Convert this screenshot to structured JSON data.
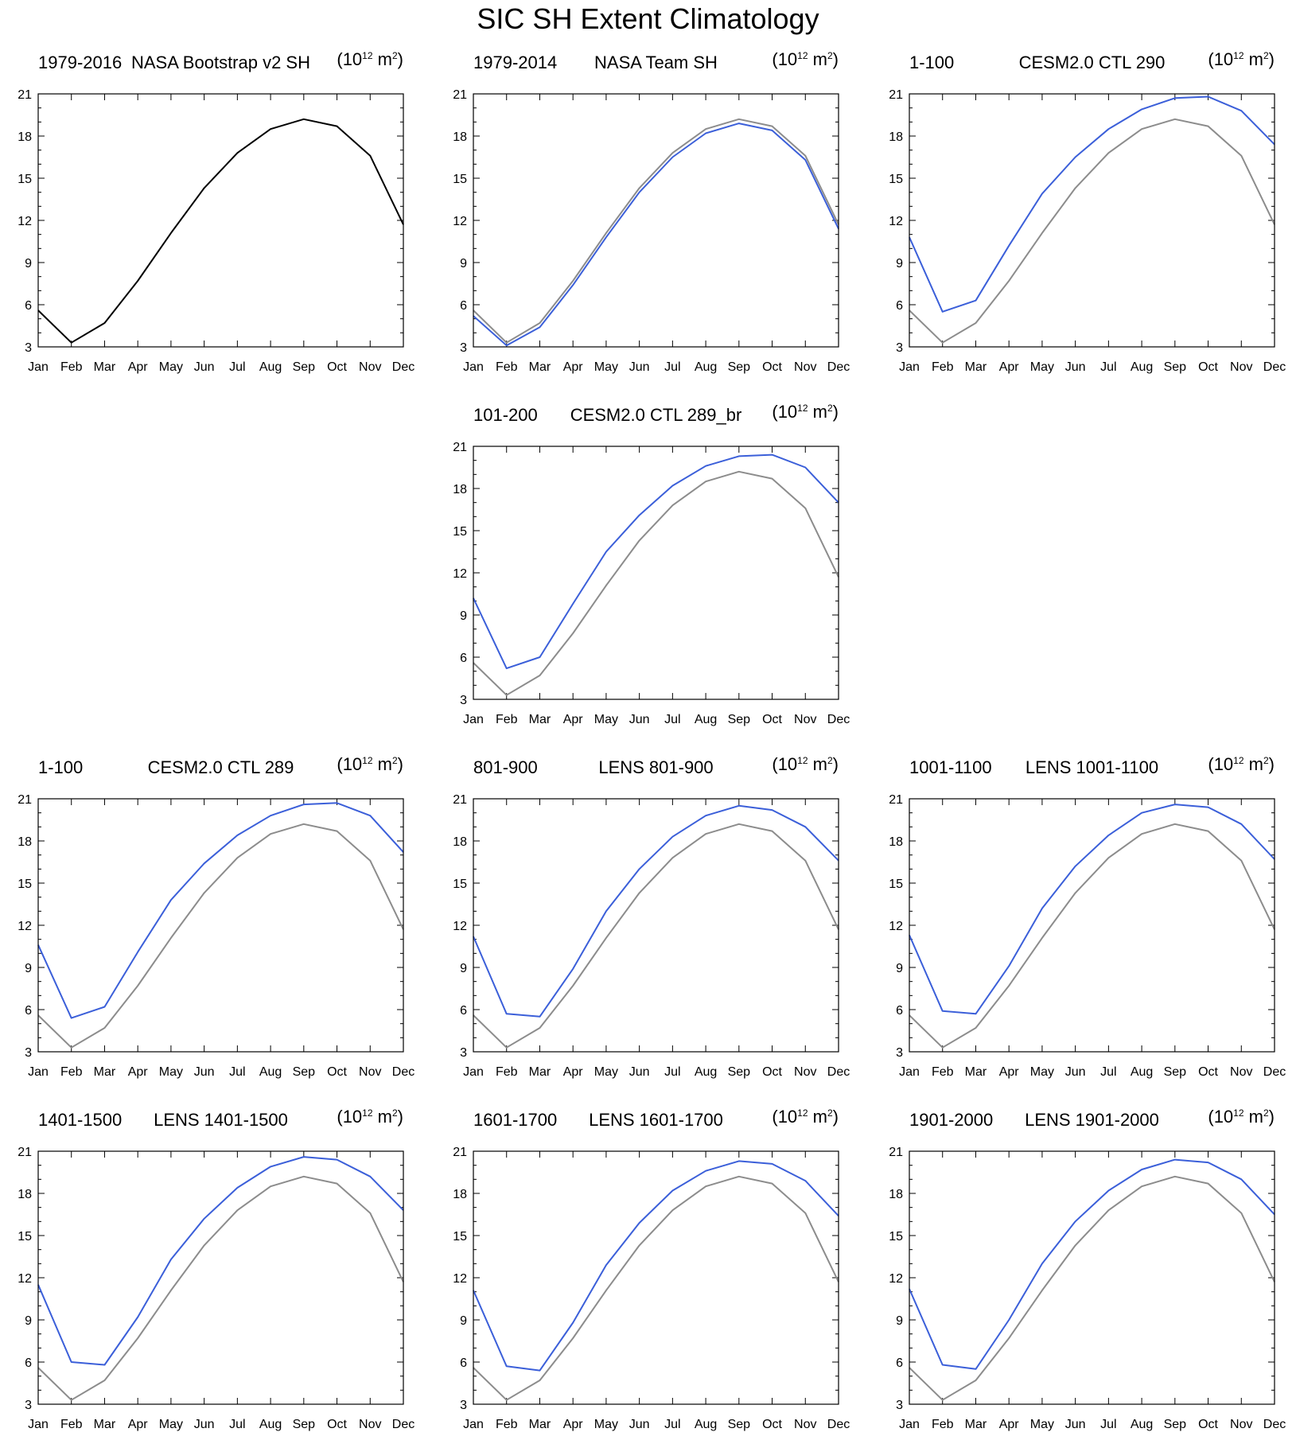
{
  "title": "SIC SH Extent Climatology",
  "units": {
    "base": "(10",
    "exp": "12",
    "mid": " m",
    "exp2": "2",
    "end": ")"
  },
  "colors": {
    "reference": "#000000",
    "reference_overlay": "#8c8c8c",
    "model": "#3b5fd9"
  },
  "chart_data": [
    {
      "type": "line",
      "left_label": "1979-2016",
      "title": "NASA Bootstrap v2 SH",
      "categories": [
        "Jan",
        "Feb",
        "Mar",
        "Apr",
        "May",
        "Jun",
        "Jul",
        "Aug",
        "Sep",
        "Oct",
        "Nov",
        "Dec"
      ],
      "ylim": [
        3,
        21
      ],
      "yticks": [
        3,
        6,
        9,
        12,
        15,
        18,
        21
      ],
      "series": [
        {
          "role": "reference",
          "values": [
            5.6,
            3.3,
            4.7,
            7.7,
            11.1,
            14.3,
            16.8,
            18.5,
            19.2,
            18.7,
            16.6,
            11.7
          ]
        }
      ]
    },
    {
      "type": "line",
      "left_label": "1979-2014",
      "title": "NASA Team SH",
      "categories": [
        "Jan",
        "Feb",
        "Mar",
        "Apr",
        "May",
        "Jun",
        "Jul",
        "Aug",
        "Sep",
        "Oct",
        "Nov",
        "Dec"
      ],
      "ylim": [
        3,
        21
      ],
      "yticks": [
        3,
        6,
        9,
        12,
        15,
        18,
        21
      ],
      "series": [
        {
          "role": "reference_overlay",
          "values": [
            5.6,
            3.3,
            4.7,
            7.7,
            11.1,
            14.3,
            16.8,
            18.5,
            19.2,
            18.7,
            16.6,
            11.7
          ]
        },
        {
          "role": "model",
          "values": [
            5.2,
            3.1,
            4.4,
            7.4,
            10.8,
            14.0,
            16.5,
            18.2,
            18.9,
            18.4,
            16.3,
            11.4
          ]
        }
      ]
    },
    {
      "type": "line",
      "left_label": "1-100",
      "title": "CESM2.0 CTL 290",
      "categories": [
        "Jan",
        "Feb",
        "Mar",
        "Apr",
        "May",
        "Jun",
        "Jul",
        "Aug",
        "Sep",
        "Oct",
        "Nov",
        "Dec"
      ],
      "ylim": [
        3,
        21
      ],
      "yticks": [
        3,
        6,
        9,
        12,
        15,
        18,
        21
      ],
      "series": [
        {
          "role": "reference_overlay",
          "values": [
            5.6,
            3.3,
            4.7,
            7.7,
            11.1,
            14.3,
            16.8,
            18.5,
            19.2,
            18.7,
            16.6,
            11.7
          ]
        },
        {
          "role": "model",
          "values": [
            10.8,
            5.5,
            6.3,
            10.2,
            13.9,
            16.5,
            18.5,
            19.9,
            20.7,
            20.8,
            19.8,
            17.4
          ]
        }
      ]
    },
    {
      "type": "line",
      "left_label": "101-200",
      "title": "CESM2.0 CTL 289_br",
      "categories": [
        "Jan",
        "Feb",
        "Mar",
        "Apr",
        "May",
        "Jun",
        "Jul",
        "Aug",
        "Sep",
        "Oct",
        "Nov",
        "Dec"
      ],
      "ylim": [
        3,
        21
      ],
      "yticks": [
        3,
        6,
        9,
        12,
        15,
        18,
        21
      ],
      "series": [
        {
          "role": "reference_overlay",
          "values": [
            5.6,
            3.3,
            4.7,
            7.7,
            11.1,
            14.3,
            16.8,
            18.5,
            19.2,
            18.7,
            16.6,
            11.7
          ]
        },
        {
          "role": "model",
          "values": [
            10.2,
            5.2,
            6.0,
            9.8,
            13.5,
            16.1,
            18.2,
            19.6,
            20.3,
            20.4,
            19.5,
            17.0
          ]
        }
      ]
    },
    {
      "type": "line",
      "left_label": "1-100",
      "title": "CESM2.0 CTL 289",
      "categories": [
        "Jan",
        "Feb",
        "Mar",
        "Apr",
        "May",
        "Jun",
        "Jul",
        "Aug",
        "Sep",
        "Oct",
        "Nov",
        "Dec"
      ],
      "ylim": [
        3,
        21
      ],
      "yticks": [
        3,
        6,
        9,
        12,
        15,
        18,
        21
      ],
      "series": [
        {
          "role": "reference_overlay",
          "values": [
            5.6,
            3.3,
            4.7,
            7.7,
            11.1,
            14.3,
            16.8,
            18.5,
            19.2,
            18.7,
            16.6,
            11.7
          ]
        },
        {
          "role": "model",
          "values": [
            10.6,
            5.4,
            6.2,
            10.1,
            13.8,
            16.4,
            18.4,
            19.8,
            20.6,
            20.7,
            19.8,
            17.2
          ]
        }
      ]
    },
    {
      "type": "line",
      "left_label": "801-900",
      "title": "LENS 801-900",
      "categories": [
        "Jan",
        "Feb",
        "Mar",
        "Apr",
        "May",
        "Jun",
        "Jul",
        "Aug",
        "Sep",
        "Oct",
        "Nov",
        "Dec"
      ],
      "ylim": [
        3,
        21
      ],
      "yticks": [
        3,
        6,
        9,
        12,
        15,
        18,
        21
      ],
      "series": [
        {
          "role": "reference_overlay",
          "values": [
            5.6,
            3.3,
            4.7,
            7.7,
            11.1,
            14.3,
            16.8,
            18.5,
            19.2,
            18.7,
            16.6,
            11.7
          ]
        },
        {
          "role": "model",
          "values": [
            11.2,
            5.7,
            5.5,
            8.9,
            13.0,
            16.0,
            18.3,
            19.8,
            20.5,
            20.2,
            19.0,
            16.6
          ]
        }
      ]
    },
    {
      "type": "line",
      "left_label": "1001-1100",
      "title": "LENS 1001-1100",
      "categories": [
        "Jan",
        "Feb",
        "Mar",
        "Apr",
        "May",
        "Jun",
        "Jul",
        "Aug",
        "Sep",
        "Oct",
        "Nov",
        "Dec"
      ],
      "ylim": [
        3,
        21
      ],
      "yticks": [
        3,
        6,
        9,
        12,
        15,
        18,
        21
      ],
      "series": [
        {
          "role": "reference_overlay",
          "values": [
            5.6,
            3.3,
            4.7,
            7.7,
            11.1,
            14.3,
            16.8,
            18.5,
            19.2,
            18.7,
            16.6,
            11.7
          ]
        },
        {
          "role": "model",
          "values": [
            11.3,
            5.9,
            5.7,
            9.1,
            13.2,
            16.2,
            18.4,
            20.0,
            20.6,
            20.4,
            19.2,
            16.7
          ]
        }
      ]
    },
    {
      "type": "line",
      "left_label": "1401-1500",
      "title": "LENS 1401-1500",
      "categories": [
        "Jan",
        "Feb",
        "Mar",
        "Apr",
        "May",
        "Jun",
        "Jul",
        "Aug",
        "Sep",
        "Oct",
        "Nov",
        "Dec"
      ],
      "ylim": [
        3,
        21
      ],
      "yticks": [
        3,
        6,
        9,
        12,
        15,
        18,
        21
      ],
      "series": [
        {
          "role": "reference_overlay",
          "values": [
            5.6,
            3.3,
            4.7,
            7.7,
            11.1,
            14.3,
            16.8,
            18.5,
            19.2,
            18.7,
            16.6,
            11.7
          ]
        },
        {
          "role": "model",
          "values": [
            11.5,
            6.0,
            5.8,
            9.2,
            13.3,
            16.2,
            18.4,
            19.9,
            20.6,
            20.4,
            19.2,
            16.8
          ]
        }
      ]
    },
    {
      "type": "line",
      "left_label": "1601-1700",
      "title": "LENS 1601-1700",
      "categories": [
        "Jan",
        "Feb",
        "Mar",
        "Apr",
        "May",
        "Jun",
        "Jul",
        "Aug",
        "Sep",
        "Oct",
        "Nov",
        "Dec"
      ],
      "ylim": [
        3,
        21
      ],
      "yticks": [
        3,
        6,
        9,
        12,
        15,
        18,
        21
      ],
      "series": [
        {
          "role": "reference_overlay",
          "values": [
            5.6,
            3.3,
            4.7,
            7.7,
            11.1,
            14.3,
            16.8,
            18.5,
            19.2,
            18.7,
            16.6,
            11.7
          ]
        },
        {
          "role": "model",
          "values": [
            11.1,
            5.7,
            5.4,
            8.8,
            12.9,
            15.9,
            18.2,
            19.6,
            20.3,
            20.1,
            18.9,
            16.4
          ]
        }
      ]
    },
    {
      "type": "line",
      "left_label": "1901-2000",
      "title": "LENS 1901-2000",
      "categories": [
        "Jan",
        "Feb",
        "Mar",
        "Apr",
        "May",
        "Jun",
        "Jul",
        "Aug",
        "Sep",
        "Oct",
        "Nov",
        "Dec"
      ],
      "ylim": [
        3,
        21
      ],
      "yticks": [
        3,
        6,
        9,
        12,
        15,
        18,
        21
      ],
      "series": [
        {
          "role": "reference_overlay",
          "values": [
            5.6,
            3.3,
            4.7,
            7.7,
            11.1,
            14.3,
            16.8,
            18.5,
            19.2,
            18.7,
            16.6,
            11.7
          ]
        },
        {
          "role": "model",
          "values": [
            11.2,
            5.8,
            5.5,
            9.0,
            13.0,
            16.0,
            18.2,
            19.7,
            20.4,
            20.2,
            19.0,
            16.5
          ]
        }
      ]
    }
  ]
}
